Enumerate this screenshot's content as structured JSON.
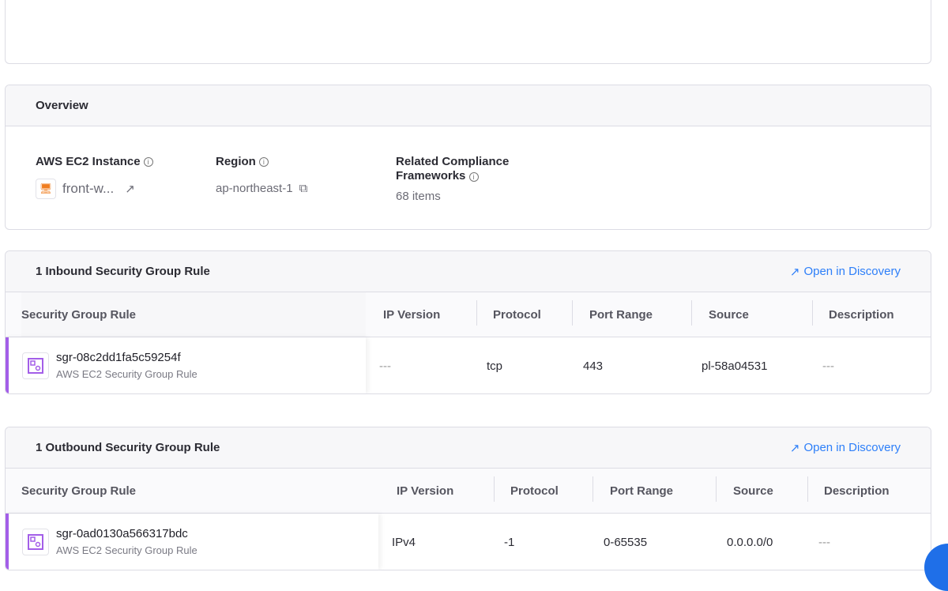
{
  "overview": {
    "title": "Overview",
    "fields": [
      {
        "label": "AWS EC2 Instance",
        "value": "front-w..."
      },
      {
        "label": "Region",
        "value": "ap-northeast-1"
      },
      {
        "label": "Related Compliance Frameworks",
        "value": "68 items"
      }
    ]
  },
  "inbound": {
    "title": "1 Inbound Security Group Rule",
    "link": "Open in Discovery",
    "columns": [
      "Security Group Rule",
      "IP Version",
      "Protocol",
      "Port Range",
      "Source",
      "Description"
    ],
    "rows": [
      {
        "name": "sgr-08c2dd1fa5c59254f",
        "type": "AWS EC2 Security Group Rule",
        "ip_version": "---",
        "protocol": "tcp",
        "port_range": "443",
        "source": "pl-58a04531",
        "description": "---"
      }
    ]
  },
  "outbound": {
    "title": "1 Outbound Security Group Rule",
    "link": "Open in Discovery",
    "columns": [
      "Security Group Rule",
      "IP Version",
      "Protocol",
      "Port Range",
      "Source",
      "Description"
    ],
    "rows": [
      {
        "name": "sgr-0ad0130a566317bdc",
        "type": "AWS EC2 Security Group Rule",
        "ip_version": "IPv4",
        "protocol": "-1",
        "port_range": "0-65535",
        "source": "0.0.0.0/0",
        "description": "---"
      }
    ]
  },
  "colors": {
    "accent": "#2d7ff9",
    "row_marker": "#a35ee8"
  }
}
